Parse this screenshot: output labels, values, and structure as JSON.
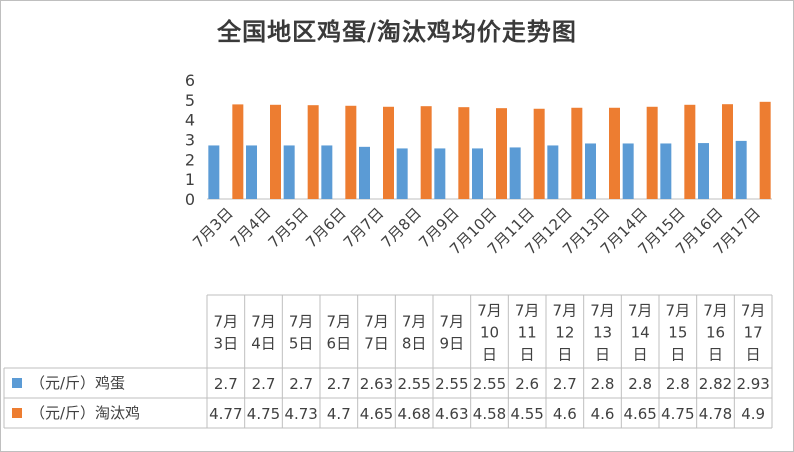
{
  "chart_data": {
    "type": "bar",
    "title": "全国地区鸡蛋/淘汰鸡均价走势图",
    "categories": [
      "7月3日",
      "7月4日",
      "7月5日",
      "7月6日",
      "7月7日",
      "7月8日",
      "7月9日",
      "7月10日",
      "7月11日",
      "7月12日",
      "7月13日",
      "7月14日",
      "7月15日",
      "7月16日",
      "7月17日"
    ],
    "series": [
      {
        "name": "（元/斤）鸡蛋",
        "color": "#5b9bd5",
        "values": [
          2.7,
          2.7,
          2.7,
          2.7,
          2.63,
          2.55,
          2.55,
          2.55,
          2.6,
          2.7,
          2.8,
          2.8,
          2.8,
          2.82,
          2.93
        ]
      },
      {
        "name": "（元/斤）淘汰鸡",
        "color": "#ed7d31",
        "values": [
          4.77,
          4.75,
          4.73,
          4.7,
          4.65,
          4.68,
          4.63,
          4.58,
          4.55,
          4.6,
          4.6,
          4.65,
          4.75,
          4.78,
          4.9
        ]
      }
    ],
    "ylim": [
      0,
      6
    ],
    "yticks": [
      0,
      1,
      2,
      3,
      4,
      5,
      6
    ],
    "grid": false,
    "legend": "data-table"
  }
}
